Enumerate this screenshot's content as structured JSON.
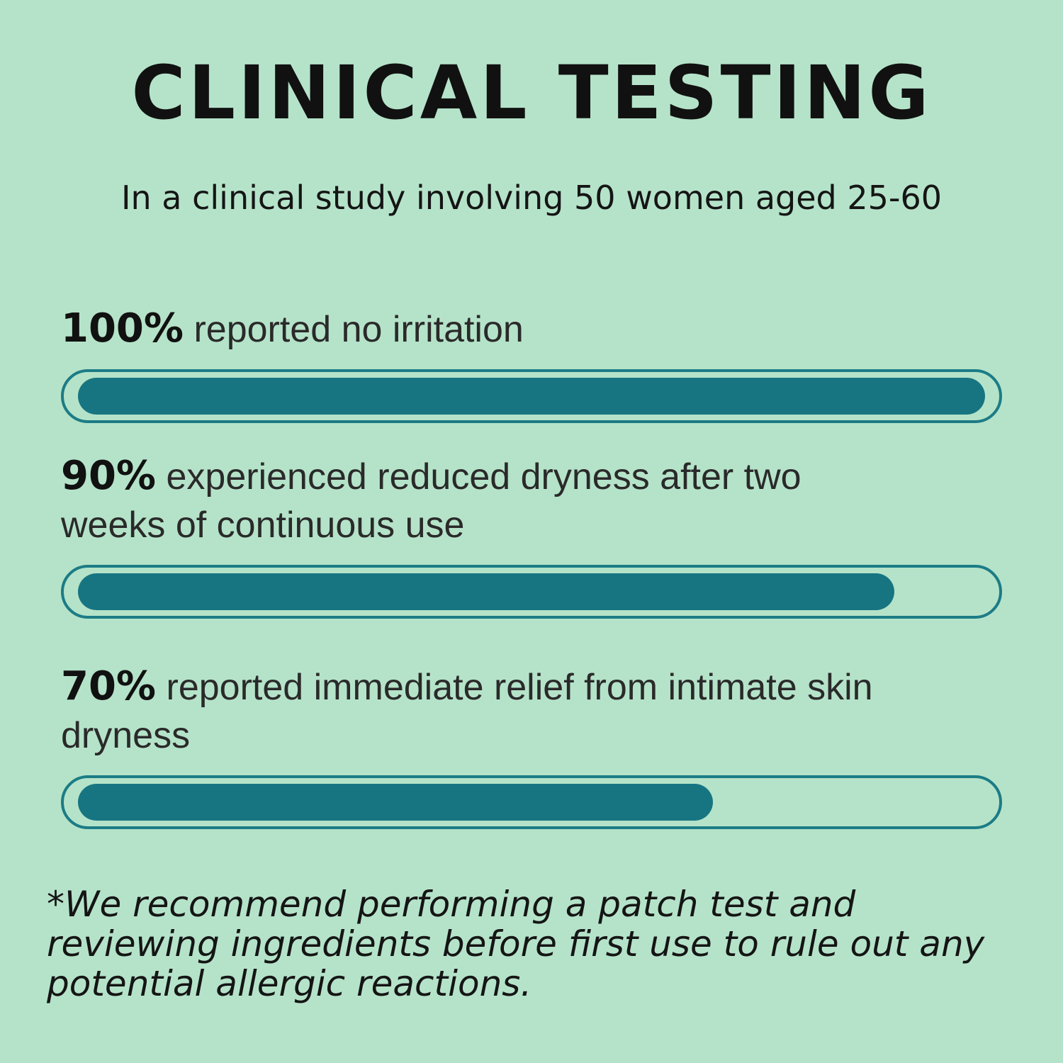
{
  "chart_data": {
    "type": "bar",
    "title": "CLINICAL TESTING",
    "subtitle": "In a clinical study involving 50 women aged 25-60",
    "categories": [
      "reported no irritation",
      "experienced reduced dryness after two weeks of continuous use",
      "reported immediate relief from intimate skin dryness"
    ],
    "values": [
      100,
      90,
      70
    ],
    "value_labels": [
      "100%",
      "90%",
      "70%"
    ],
    "color": "#177582",
    "xlim": [
      0,
      100
    ],
    "footnote": "*We recommend performing a patch test and reviewing ingredients before first use to rule out any potential allergic reactions."
  }
}
